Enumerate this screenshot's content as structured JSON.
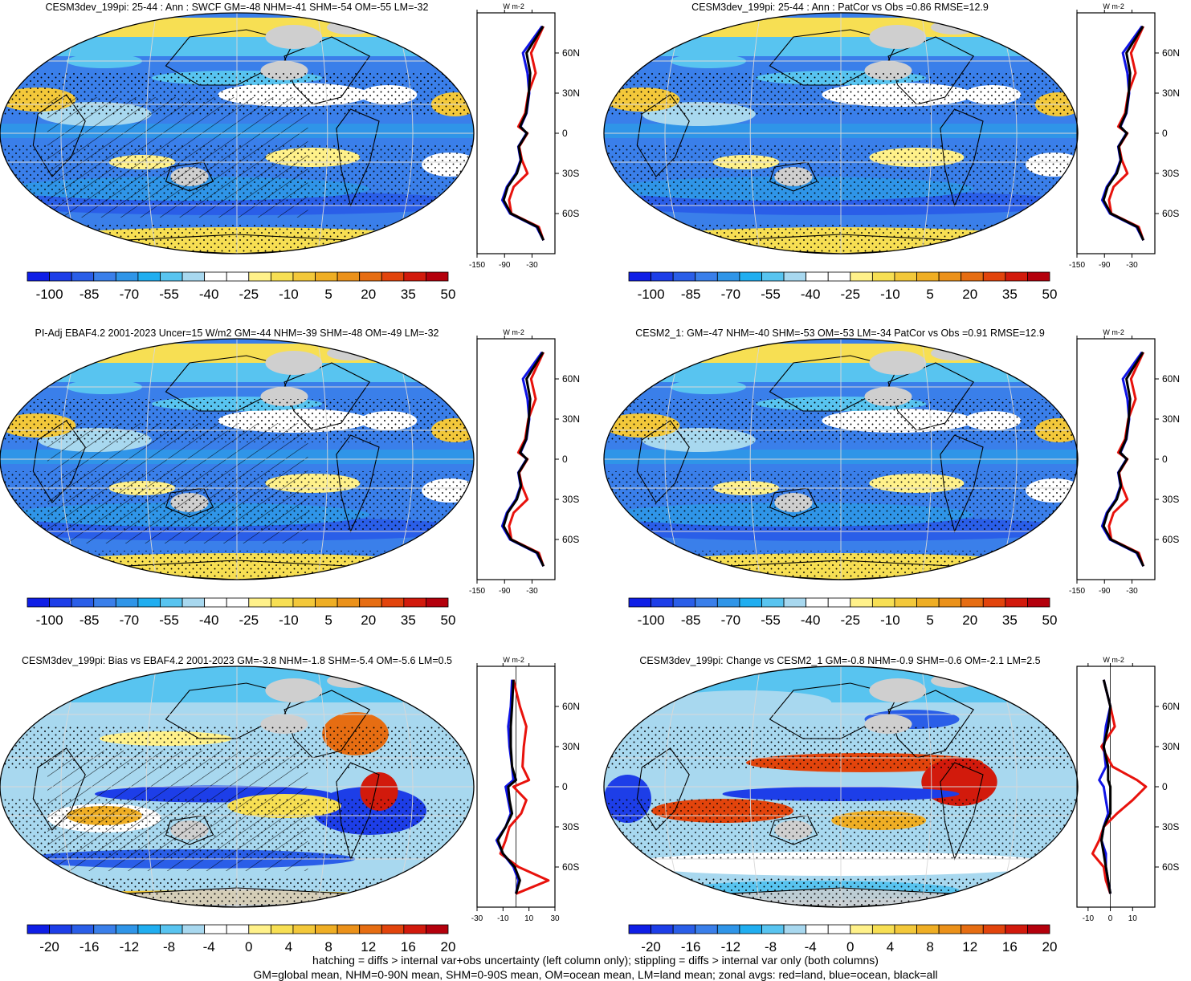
{
  "panels": [
    {
      "title": "CESM3dev_199pi: 25-44 : Ann : SWCF GM=-48 NHM=-41 SHM=-54 OM=-55 LM=-32",
      "colorbar_labels": [
        "-100",
        "-85",
        "-70",
        "-55",
        "-40",
        "-25",
        "-10",
        "5",
        "20",
        "35",
        "50"
      ],
      "zonal_xticks": [
        "-150",
        "-90",
        "-30"
      ],
      "hatching": true,
      "stippling": true
    },
    {
      "title": "CESM3dev_199pi: 25-44 : Ann : PatCor vs Obs =0.86 RMSE=12.9",
      "colorbar_labels": [
        "-100",
        "-85",
        "-70",
        "-55",
        "-40",
        "-25",
        "-10",
        "5",
        "20",
        "35",
        "50"
      ],
      "zonal_xticks": [
        "-150",
        "-90",
        "-30"
      ],
      "hatching": false,
      "stippling": true
    },
    {
      "title": "PI-Adj EBAF4.2 2001-2023 Uncer=15 W/m2 GM=-44 NHM=-39 SHM=-48 OM=-49 LM=-32",
      "colorbar_labels": [
        "-100",
        "-85",
        "-70",
        "-55",
        "-40",
        "-25",
        "-10",
        "5",
        "20",
        "35",
        "50"
      ],
      "zonal_xticks": [
        "-150",
        "-90",
        "-30"
      ],
      "hatching": true,
      "stippling": true
    },
    {
      "title": "CESM2_1: GM=-47 NHM=-40 SHM=-53 OM=-53 LM=-34 PatCor vs Obs =0.91 RMSE=12.9",
      "colorbar_labels": [
        "-100",
        "-85",
        "-70",
        "-55",
        "-40",
        "-25",
        "-10",
        "5",
        "20",
        "35",
        "50"
      ],
      "zonal_xticks": [
        "-150",
        "-90",
        "-30"
      ],
      "hatching": false,
      "stippling": true
    },
    {
      "title": "CESM3dev_199pi: Bias vs EBAF4.2 2001-2023 GM=-3.8 NHM=-1.8 SHM=-5.4 OM=-5.6 LM=0.5",
      "colorbar_labels": [
        "-20",
        "-16",
        "-12",
        "-8",
        "-4",
        "0",
        "4",
        "8",
        "12",
        "16",
        "20"
      ],
      "zonal_xticks": [
        "-30",
        "-10",
        "10",
        "30"
      ],
      "hatching": true,
      "stippling": true
    },
    {
      "title": "CESM3dev_199pi: Change vs CESM2_1 GM=-0.8 NHM=-0.9 SHM=-0.6 OM=-2.1 LM=2.5",
      "colorbar_labels": [
        "-20",
        "-16",
        "-12",
        "-8",
        "-4",
        "0",
        "4",
        "8",
        "12",
        "16",
        "20"
      ],
      "zonal_xticks": [
        "-10",
        "0",
        "10"
      ],
      "hatching": false,
      "stippling": true
    }
  ],
  "zonal_units": "W m-2",
  "lat_ticks": [
    "60N",
    "30N",
    "0",
    "30S",
    "60S"
  ],
  "footer": {
    "line1": "hatching = diffs > internal var+obs uncertainty (left column only); stippling = diffs > internal var only (both columns)",
    "line2": "GM=global mean, NHM=0-90N mean, SHM=0-90S mean, OM=ocean mean, LM=land mean; zonal avgs: red=land, blue=ocean, black=all"
  },
  "colors": {
    "abs_scale": [
      "#0f1ee6",
      "#1d3ee8",
      "#2a5ee8",
      "#3a7fea",
      "#2f95e8",
      "#20aef0",
      "#58c4f0",
      "#a8d8ef",
      "#ffffff",
      "#ffffff",
      "#fff18a",
      "#f7df53",
      "#f3c83a",
      "#efae24",
      "#eb911a",
      "#e66d12",
      "#e2440c",
      "#d21a0c",
      "#b4000c"
    ],
    "diff_scale": [
      "#0f1ee6",
      "#1d3ee8",
      "#2a5ee8",
      "#3a7fea",
      "#2f95e8",
      "#20aef0",
      "#58c4f0",
      "#a8d8ef",
      "#ffffff",
      "#ffffff",
      "#fff18a",
      "#f7df53",
      "#f3c83a",
      "#efae24",
      "#eb911a",
      "#e66d12",
      "#e2440c",
      "#d21a0c",
      "#b4000c"
    ],
    "land": "#cfcfcf",
    "zonal_land": "#e8120c",
    "zonal_ocean": "#1014e6",
    "zonal_all": "#000000"
  },
  "chart_data": [
    {
      "type": "heatmap",
      "title": "CESM3dev_199pi: 25-44 : Ann : SWCF GM=-48 NHM=-41 SHM=-54 OM=-55 LM=-32",
      "zonal_profile": {
        "lat": [
          80,
          60,
          45,
          30,
          15,
          5,
          0,
          -10,
          -20,
          -30,
          -40,
          -50,
          -60,
          -70,
          -80
        ],
        "land": [
          -5,
          -32,
          -22,
          -38,
          -45,
          -60,
          -40,
          -58,
          -52,
          -40,
          -70,
          -80,
          -75,
          -15,
          -5
        ],
        "ocean": [
          -8,
          -50,
          -40,
          -36,
          -42,
          -55,
          -42,
          -60,
          -55,
          -65,
          -85,
          -95,
          -78,
          -20,
          -5
        ],
        "all": [
          -6,
          -42,
          -34,
          -37,
          -43,
          -56,
          -41,
          -59,
          -54,
          -63,
          -83,
          -92,
          -76,
          -18,
          -5
        ]
      }
    },
    {
      "type": "heatmap",
      "title": "CESM3dev_199pi: 25-44 : Ann : PatCor vs Obs =0.86 RMSE=12.9"
    },
    {
      "type": "heatmap",
      "title": "PI-Adj EBAF4.2 2001-2023 Uncer=15 W/m2 GM=-44 NHM=-39 SHM=-48 OM=-49 LM=-32"
    },
    {
      "type": "heatmap",
      "title": "CESM2_1: GM=-47 NHM=-40 SHM=-53 OM=-53 LM=-34 PatCor vs Obs =0.91 RMSE=12.9"
    },
    {
      "type": "heatmap",
      "title": "CESM3dev_199pi: Bias vs EBAF4.2 2001-2023 GM=-3.8 NHM=-1.8 SHM=-5.4 OM=-5.6 LM=0.5",
      "zonal_profile": {
        "lat": [
          80,
          60,
          45,
          30,
          15,
          5,
          0,
          -10,
          -20,
          -30,
          -40,
          -50,
          -60,
          -70,
          -80
        ],
        "land": [
          -2,
          3,
          8,
          6,
          5,
          10,
          -2,
          8,
          4,
          -5,
          -8,
          -12,
          2,
          25,
          0
        ],
        "ocean": [
          -3,
          -4,
          -6,
          -5,
          -3,
          -2,
          -8,
          -6,
          -4,
          -8,
          -15,
          -10,
          -2,
          2,
          0
        ],
        "all": [
          -2,
          -3,
          -4,
          -4,
          -3,
          0,
          -6,
          -5,
          -3,
          -8,
          -14,
          -10,
          -1,
          3,
          0
        ]
      }
    },
    {
      "type": "heatmap",
      "title": "CESM3dev_199pi: Change vs CESM2_1 GM=-0.8 NHM=-0.9 SHM=-0.6 OM=-2.1 LM=2.5",
      "zonal_profile": {
        "lat": [
          80,
          60,
          45,
          30,
          15,
          5,
          0,
          -10,
          -20,
          -30,
          -40,
          -50,
          -60,
          -70,
          -80
        ],
        "land": [
          -3,
          0,
          2,
          -4,
          1,
          12,
          16,
          10,
          3,
          -3,
          -5,
          -8,
          -3,
          -2,
          0
        ],
        "ocean": [
          -3,
          0,
          -2,
          -3,
          -2,
          -5,
          -3,
          -2,
          -1,
          -3,
          -4,
          -2,
          -2,
          -1,
          0
        ],
        "all": [
          -3,
          0,
          -1,
          -3,
          -1,
          -1,
          0,
          0,
          0,
          -3,
          -4,
          -3,
          -2,
          -1,
          0
        ]
      }
    }
  ]
}
